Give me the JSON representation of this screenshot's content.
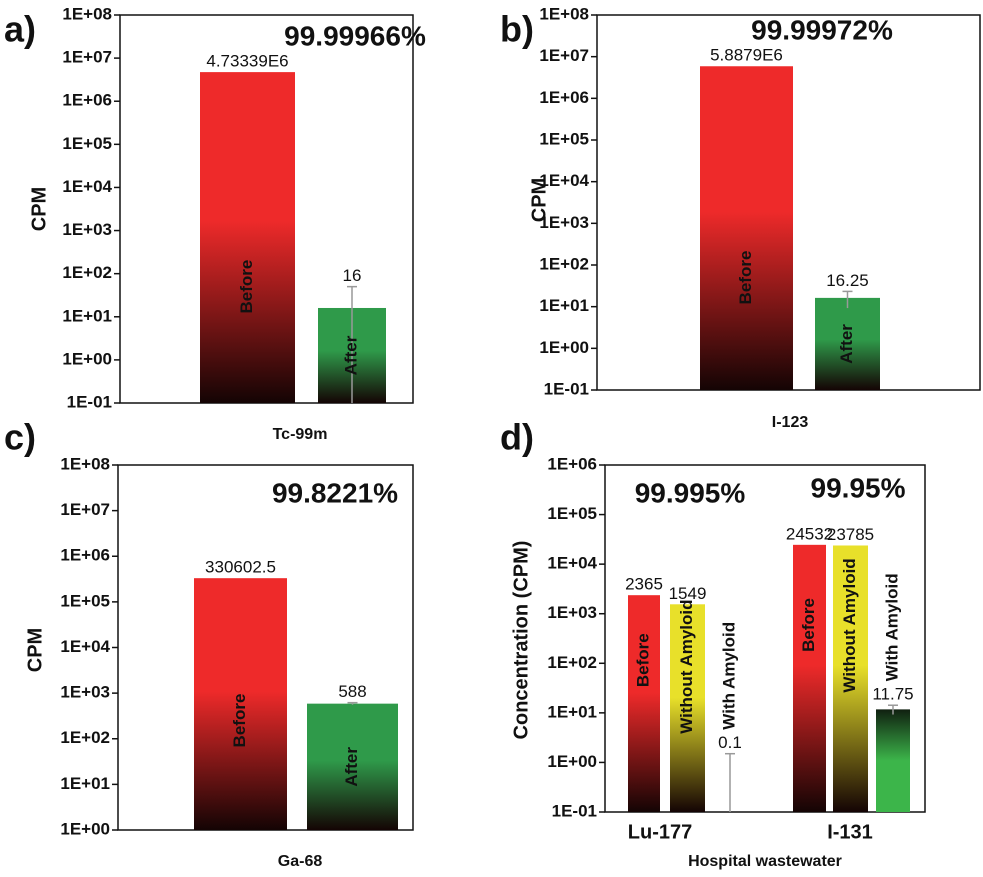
{
  "chart_data": [
    {
      "type": "bar",
      "panel_label": "a)",
      "ylabel": "CPM",
      "xlabel": "Tc-99m",
      "annotation": "99.99966%",
      "log_scale": true,
      "categories": [
        "Before",
        "After"
      ],
      "values": [
        4733390,
        16
      ],
      "value_labels": [
        "4.73339E6",
        "16"
      ],
      "errors": [
        null,
        34
      ],
      "colors": [
        "#ee2a2a",
        "#2f9a4a"
      ],
      "ylim": [
        0.1,
        100000000
      ],
      "yticks": [
        {
          "value": 0.1,
          "label": "1E-01"
        },
        {
          "value": 1,
          "label": "1E+00"
        },
        {
          "value": 10,
          "label": "1E+01"
        },
        {
          "value": 100,
          "label": "1E+02"
        },
        {
          "value": 1000,
          "label": "1E+03"
        },
        {
          "value": 10000,
          "label": "1E+04"
        },
        {
          "value": 100000,
          "label": "1E+05"
        },
        {
          "value": 1000000,
          "label": "1E+06"
        },
        {
          "value": 10000000,
          "label": "1E+07"
        },
        {
          "value": 100000000,
          "label": "1E+08"
        }
      ]
    },
    {
      "type": "bar",
      "panel_label": "b)",
      "ylabel": "CPM",
      "xlabel": "I-123",
      "annotation": "99.99972%",
      "log_scale": true,
      "categories": [
        "Before",
        "After"
      ],
      "values": [
        5887900,
        16.25
      ],
      "value_labels": [
        "5.8879E6",
        "16.25"
      ],
      "errors": [
        null,
        7
      ],
      "colors": [
        "#ee2a2a",
        "#2f9a4a"
      ],
      "ylim": [
        0.1,
        100000000
      ],
      "yticks": [
        {
          "value": 0.1,
          "label": "1E-01"
        },
        {
          "value": 1,
          "label": "1E+00"
        },
        {
          "value": 10,
          "label": "1E+01"
        },
        {
          "value": 100,
          "label": "1E+02"
        },
        {
          "value": 1000,
          "label": "1E+03"
        },
        {
          "value": 10000,
          "label": "1E+04"
        },
        {
          "value": 100000,
          "label": "1E+05"
        },
        {
          "value": 1000000,
          "label": "1E+06"
        },
        {
          "value": 10000000,
          "label": "1E+07"
        },
        {
          "value": 100000000,
          "label": "1E+08"
        }
      ]
    },
    {
      "type": "bar",
      "panel_label": "c)",
      "ylabel": "CPM",
      "xlabel": "Ga-68",
      "annotation": "99.8221%",
      "log_scale": true,
      "categories": [
        "Before",
        "After"
      ],
      "values": [
        330602.5,
        588
      ],
      "value_labels": [
        "330602.5",
        "588"
      ],
      "errors": [
        null,
        30
      ],
      "colors": [
        "#ee2a2a",
        "#2f9a4a"
      ],
      "ylim": [
        1,
        100000000
      ],
      "yticks": [
        {
          "value": 1,
          "label": "1E+00"
        },
        {
          "value": 10,
          "label": "1E+01"
        },
        {
          "value": 100,
          "label": "1E+02"
        },
        {
          "value": 1000,
          "label": "1E+03"
        },
        {
          "value": 10000,
          "label": "1E+04"
        },
        {
          "value": 100000,
          "label": "1E+05"
        },
        {
          "value": 1000000,
          "label": "1E+06"
        },
        {
          "value": 10000000,
          "label": "1E+07"
        },
        {
          "value": 100000000,
          "label": "1E+08"
        }
      ]
    },
    {
      "type": "grouped_bar",
      "panel_label": "d)",
      "ylabel": "Concentration (CPM)",
      "xlabel": "Hospital wastewater",
      "annotations": [
        "99.995%",
        "99.95%"
      ],
      "log_scale": true,
      "categories": [
        "Lu-177",
        "I-131"
      ],
      "series": [
        {
          "name": "Before",
          "color": "#ee2a2a",
          "values": [
            2365,
            24532
          ]
        },
        {
          "name": "Without Amyloid",
          "color": "#e8e02a",
          "values": [
            1549,
            23785
          ]
        },
        {
          "name": "With Amyloid",
          "color": "#3cb54a",
          "values": [
            0.1,
            11.75
          ],
          "errors": [
            1.4,
            2.5
          ]
        }
      ],
      "ylim": [
        0.1,
        1000000
      ],
      "yticks": [
        {
          "value": 0.1,
          "label": "1E-01"
        },
        {
          "value": 1,
          "label": "1E+00"
        },
        {
          "value": 10,
          "label": "1E+01"
        },
        {
          "value": 100,
          "label": "1E+02"
        },
        {
          "value": 1000,
          "label": "1E+03"
        },
        {
          "value": 10000,
          "label": "1E+04"
        },
        {
          "value": 100000,
          "label": "1E+05"
        },
        {
          "value": 1000000,
          "label": "1E+06"
        }
      ]
    }
  ]
}
